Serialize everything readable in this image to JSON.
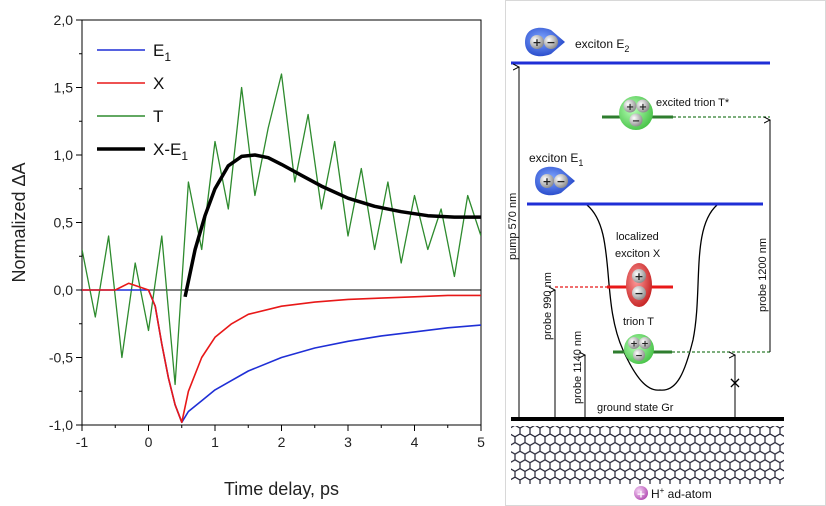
{
  "chart_data": {
    "type": "line",
    "xlabel": "Time delay, ps",
    "ylabel": "Normalized ΔA",
    "xlim": [
      -1,
      5
    ],
    "ylim": [
      -1.0,
      2.0
    ],
    "xticks": [
      "-1",
      "0",
      "1",
      "2",
      "3",
      "4",
      "5"
    ],
    "yticks": [
      "-1,0",
      "-0,5",
      "0,0",
      "0,5",
      "1,0",
      "1,5",
      "2,0"
    ],
    "zero_line": 0,
    "legend_position": "top-left",
    "series": [
      {
        "name": "E",
        "name_subscript": "1",
        "color": "#1f2fd6",
        "x": [
          -1.0,
          -0.5,
          -0.2,
          0.0,
          0.1,
          0.2,
          0.3,
          0.4,
          0.5,
          0.6,
          0.8,
          1.0,
          1.5,
          2.0,
          2.5,
          3.0,
          3.5,
          4.0,
          4.5,
          5.0
        ],
        "y": [
          0.0,
          0.0,
          0.0,
          0.0,
          -0.12,
          -0.4,
          -0.65,
          -0.85,
          -0.98,
          -0.9,
          -0.82,
          -0.74,
          -0.6,
          -0.5,
          -0.43,
          -0.38,
          -0.34,
          -0.31,
          -0.28,
          -0.26
        ]
      },
      {
        "name": "X",
        "color": "#e81818",
        "x": [
          -1.0,
          -0.5,
          -0.3,
          0.0,
          0.1,
          0.2,
          0.3,
          0.4,
          0.5,
          0.6,
          0.8,
          1.0,
          1.25,
          1.5,
          2.0,
          2.5,
          3.0,
          3.5,
          4.0,
          4.5,
          5.0
        ],
        "y": [
          0.0,
          0.0,
          0.05,
          0.0,
          -0.12,
          -0.4,
          -0.65,
          -0.85,
          -0.98,
          -0.75,
          -0.5,
          -0.35,
          -0.25,
          -0.18,
          -0.12,
          -0.09,
          -0.07,
          -0.06,
          -0.05,
          -0.04,
          -0.04
        ]
      },
      {
        "name": "T",
        "color": "#2e8b2e",
        "x": [
          -1.0,
          -0.8,
          -0.6,
          -0.4,
          -0.2,
          0.0,
          0.2,
          0.4,
          0.6,
          0.8,
          1.0,
          1.2,
          1.4,
          1.6,
          1.8,
          2.0,
          2.2,
          2.4,
          2.6,
          2.8,
          3.0,
          3.2,
          3.4,
          3.6,
          3.8,
          4.0,
          4.2,
          4.4,
          4.6,
          4.8,
          5.0
        ],
        "y": [
          0.3,
          -0.2,
          0.4,
          -0.5,
          0.2,
          -0.3,
          0.4,
          -0.7,
          0.8,
          0.3,
          1.1,
          0.6,
          1.5,
          0.7,
          1.2,
          1.6,
          0.8,
          1.3,
          0.6,
          1.1,
          0.4,
          0.9,
          0.3,
          0.8,
          0.2,
          0.7,
          0.3,
          0.6,
          0.1,
          0.7,
          0.4
        ]
      },
      {
        "name": "X-E",
        "name_subscript": "1",
        "color": "#000000",
        "x": [
          0.55,
          0.7,
          0.85,
          1.0,
          1.2,
          1.4,
          1.6,
          1.8,
          2.0,
          2.3,
          2.6,
          3.0,
          3.4,
          3.8,
          4.2,
          4.6,
          5.0
        ],
        "y": [
          -0.05,
          0.3,
          0.55,
          0.75,
          0.92,
          0.99,
          1.0,
          0.98,
          0.93,
          0.85,
          0.77,
          0.68,
          0.62,
          0.58,
          0.55,
          0.54,
          0.54
        ]
      }
    ]
  },
  "diagram": {
    "labels": {
      "exciton_e2": "exciton E",
      "exciton_e2_sub": "2",
      "excited_trion": "excited  trion T*",
      "exciton_e1": "exciton E",
      "exciton_e1_sub": "1",
      "localized_1": "localized",
      "localized_2": "exciton X",
      "trion_t": "trion T",
      "ground_state": "ground state Gr",
      "pump": "pump 570 nm",
      "probe_990": "probe 990 nm",
      "probe_1140": "probe 1140 nm",
      "probe_1200": "probe  1200 nm",
      "adatom": "H",
      "adatom_sup": "+",
      "adatom_rest": " ad-atom"
    },
    "colors": {
      "level_blue": "#1f2fd6",
      "level_red": "#e81818",
      "level_green": "#2e7d2e",
      "ground": "#000000"
    }
  }
}
